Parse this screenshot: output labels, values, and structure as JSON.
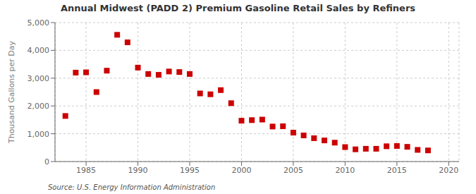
{
  "chart_data": {
    "type": "scatter",
    "title": "Annual Midwest (PADD 2) Premium Gasoline Retail Sales by Refiners",
    "ylabel": "Thousand Gallons per Day",
    "source": "Source: U.S. Energy Information Administration",
    "color": "#cc0000",
    "marker": "square",
    "grid": true,
    "x": [
      1983,
      1984,
      1985,
      1986,
      1987,
      1988,
      1989,
      1990,
      1991,
      1992,
      1993,
      1994,
      1995,
      1996,
      1997,
      1998,
      1999,
      2000,
      2001,
      2002,
      2003,
      2004,
      2005,
      2006,
      2007,
      2008,
      2009,
      2010,
      2011,
      2012,
      2013,
      2014,
      2015,
      2016,
      2017,
      2018
    ],
    "values": [
      1640,
      3200,
      3210,
      2500,
      3270,
      4560,
      4290,
      3380,
      3150,
      3120,
      3240,
      3220,
      3150,
      2450,
      2420,
      2570,
      2100,
      1470,
      1490,
      1510,
      1260,
      1270,
      1040,
      940,
      840,
      760,
      680,
      520,
      440,
      460,
      460,
      550,
      560,
      530,
      420,
      400
    ],
    "xlim": [
      1982,
      2021
    ],
    "xticks": [
      1985,
      1990,
      1995,
      2000,
      2005,
      2010,
      2015,
      2020
    ],
    "ylim": [
      0,
      5000
    ],
    "yticks": [
      0,
      {
        "value": 1000,
        "label": "1,000"
      },
      {
        "value": 2000,
        "label": "2,000"
      },
      {
        "value": 3000,
        "label": "3,000"
      },
      {
        "value": 4000,
        "label": "4,000"
      },
      {
        "value": 5000,
        "label": "5,000"
      }
    ]
  }
}
